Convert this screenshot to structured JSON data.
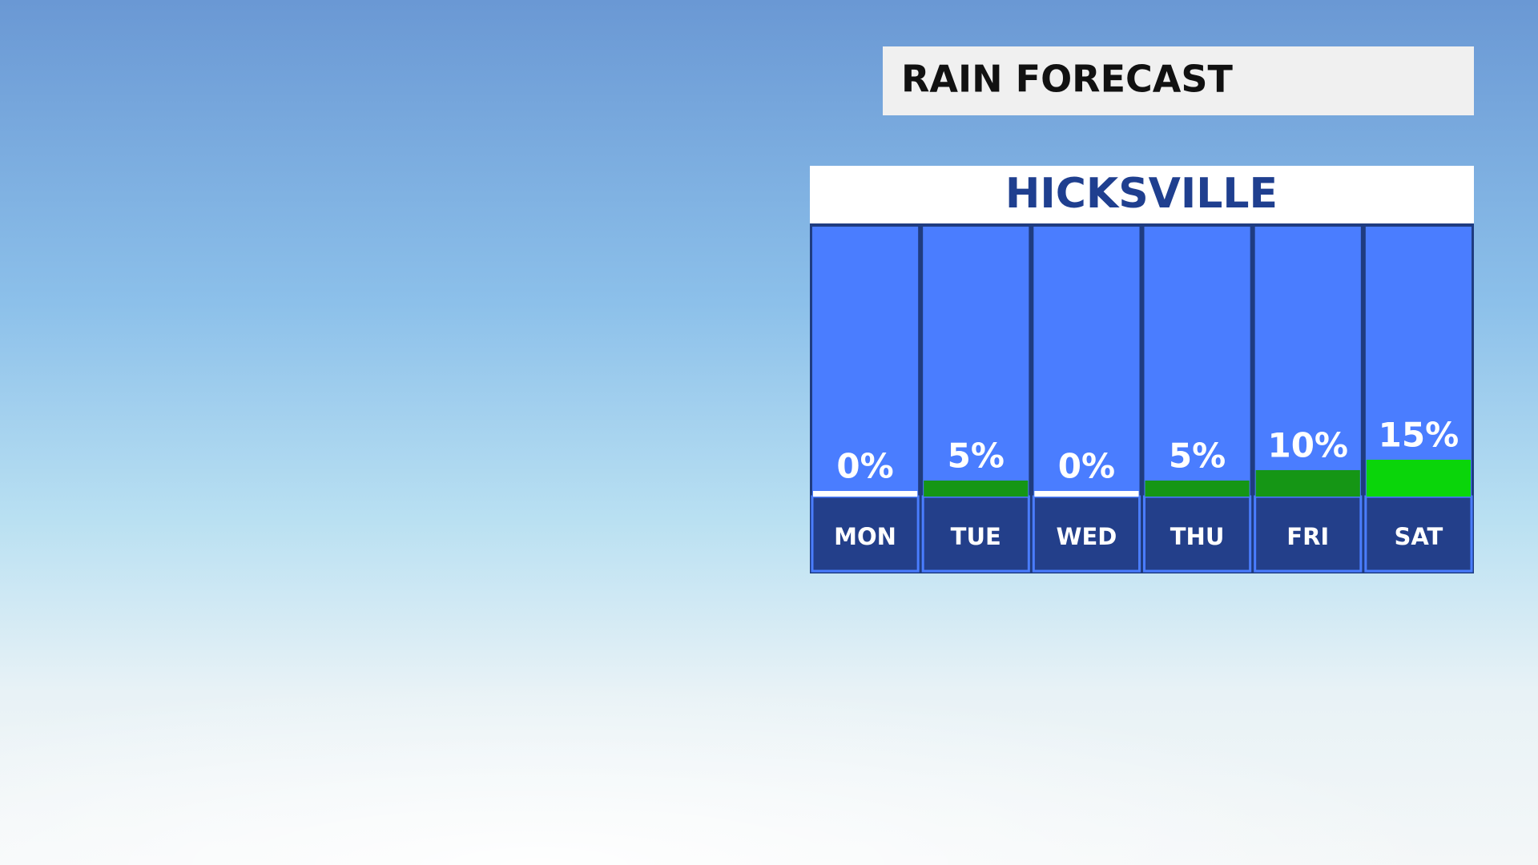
{
  "chart_data": {
    "type": "bar",
    "title": "RAIN FORECAST",
    "subtitle": "HICKSVILLE",
    "categories": [
      "MON",
      "TUE",
      "WED",
      "THU",
      "FRI",
      "SAT"
    ],
    "values": [
      0,
      5,
      0,
      5,
      10,
      15
    ],
    "value_labels": [
      "0%",
      "5%",
      "0%",
      "5%",
      "10%",
      "15%"
    ],
    "colors": [
      "#ffffff",
      "#159615",
      "#ffffff",
      "#159615",
      "#159615",
      "#0ad50a"
    ]
  }
}
